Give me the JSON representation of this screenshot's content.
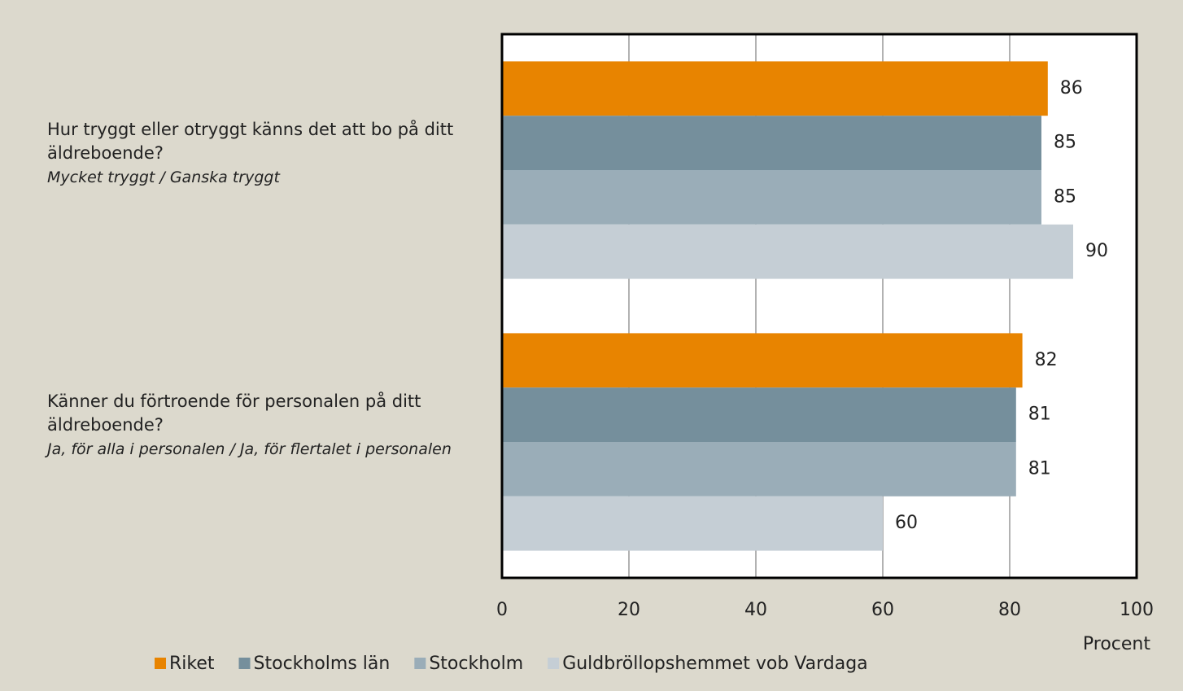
{
  "chart_data": {
    "type": "barh",
    "categories": [
      "Hur tryggt eller otryggt känns det att bo på ditt äldreboende?",
      "Känner du förtroende för personalen på ditt äldreboende?"
    ],
    "category_subtitles": [
      "Mycket tryggt / Ganska tryggt",
      "Ja, för alla i personalen / Ja, för flertalet i personalen"
    ],
    "series": [
      {
        "name": "Riket",
        "color": "#e88400",
        "values": [
          86,
          82
        ]
      },
      {
        "name": "Stockholms län",
        "color": "#758f9c",
        "values": [
          85,
          81
        ]
      },
      {
        "name": "Stockholm",
        "color": "#9aadb8",
        "values": [
          85,
          81
        ]
      },
      {
        "name": "Guldbröllopshemmet vob Vardaga",
        "color": "#c5ced5",
        "values": [
          90,
          60
        ]
      }
    ],
    "xlabel": "Procent",
    "xlim": [
      0,
      100
    ],
    "xticks": [
      0,
      20,
      40,
      60,
      80,
      100
    ],
    "grid": true,
    "legend": "bottom"
  }
}
